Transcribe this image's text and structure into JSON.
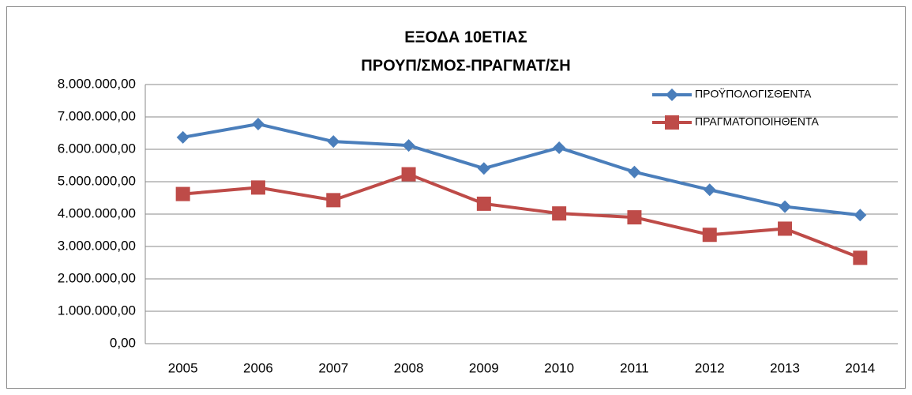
{
  "chart_data": {
    "type": "line",
    "title": [
      "ΕΞΟΔΑ 10ΕΤΙΑΣ",
      "ΠΡΟΥΠ/ΣΜΟΣ-ΠΡΑΓΜΑΤ/ΣΗ"
    ],
    "categories": [
      "2005",
      "2006",
      "2007",
      "2008",
      "2009",
      "2010",
      "2011",
      "2012",
      "2013",
      "2014"
    ],
    "series": [
      {
        "name": "ΠΡΟΫΠΟΛΟΓΙΣΘΕΝΤΑ",
        "color": "#4a7ebb",
        "marker": "diamond",
        "values": [
          6370000,
          6780000,
          6240000,
          6120000,
          5410000,
          6050000,
          5300000,
          4750000,
          4230000,
          3970000
        ]
      },
      {
        "name": "ΠΡΑΓΜΑΤΟΠΟΙΗΘΕΝΤΑ",
        "color": "#be4b48",
        "marker": "square",
        "values": [
          4620000,
          4820000,
          4430000,
          5230000,
          4320000,
          4020000,
          3900000,
          3360000,
          3550000,
          2650000
        ]
      }
    ],
    "ylim": [
      0,
      8000000
    ],
    "yticks": [
      {
        "value": 0,
        "label": "0,00"
      },
      {
        "value": 1000000,
        "label": "1.000.000,00"
      },
      {
        "value": 2000000,
        "label": "2.000.000,00"
      },
      {
        "value": 3000000,
        "label": "3.000.000,00"
      },
      {
        "value": 4000000,
        "label": "4.000.000,00"
      },
      {
        "value": 5000000,
        "label": "5.000.000,00"
      },
      {
        "value": 6000000,
        "label": "6.000.000,00"
      },
      {
        "value": 7000000,
        "label": "7.000.000,00"
      },
      {
        "value": 8000000,
        "label": "8.000.000,00"
      }
    ],
    "grid": true,
    "legend": "top-right"
  }
}
